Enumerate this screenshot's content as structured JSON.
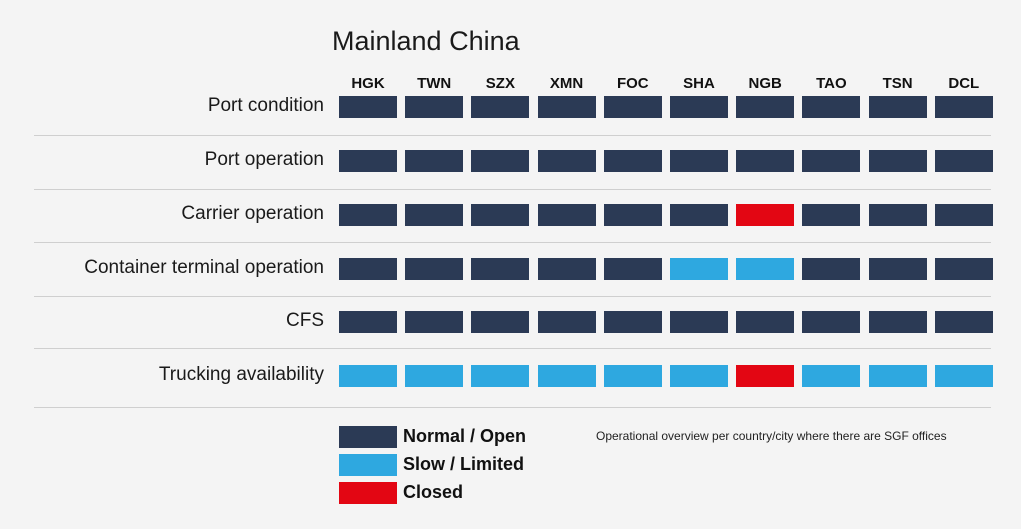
{
  "chart_data": {
    "type": "table",
    "title": "Mainland China",
    "columns": [
      "HGK",
      "TWN",
      "SZX",
      "XMN",
      "FOC",
      "SHA",
      "NGB",
      "TAO",
      "TSN",
      "DCL"
    ],
    "rows": [
      {
        "label": "Port condition",
        "values": [
          "normal",
          "normal",
          "normal",
          "normal",
          "normal",
          "normal",
          "normal",
          "normal",
          "normal",
          "normal"
        ]
      },
      {
        "label": "Port operation",
        "values": [
          "normal",
          "normal",
          "normal",
          "normal",
          "normal",
          "normal",
          "normal",
          "normal",
          "normal",
          "normal"
        ]
      },
      {
        "label": "Carrier operation",
        "values": [
          "normal",
          "normal",
          "normal",
          "normal",
          "normal",
          "normal",
          "closed",
          "normal",
          "normal",
          "normal"
        ]
      },
      {
        "label": "Container terminal operation",
        "values": [
          "normal",
          "normal",
          "normal",
          "normal",
          "normal",
          "slow",
          "slow",
          "normal",
          "normal",
          "normal"
        ]
      },
      {
        "label": "CFS",
        "values": [
          "normal",
          "normal",
          "normal",
          "normal",
          "normal",
          "normal",
          "normal",
          "normal",
          "normal",
          "normal"
        ]
      },
      {
        "label": "Trucking availability",
        "values": [
          "slow",
          "slow",
          "slow",
          "slow",
          "slow",
          "slow",
          "closed",
          "slow",
          "slow",
          "slow"
        ]
      }
    ],
    "legend": [
      {
        "key": "normal",
        "label": "Normal / Open",
        "color": "#2b3a55"
      },
      {
        "key": "slow",
        "label": "Slow / Limited",
        "color": "#2ea8e0"
      },
      {
        "key": "closed",
        "label": "Closed",
        "color": "#e30613"
      }
    ],
    "note": "Operational overview per country/city where there are SGF offices"
  }
}
